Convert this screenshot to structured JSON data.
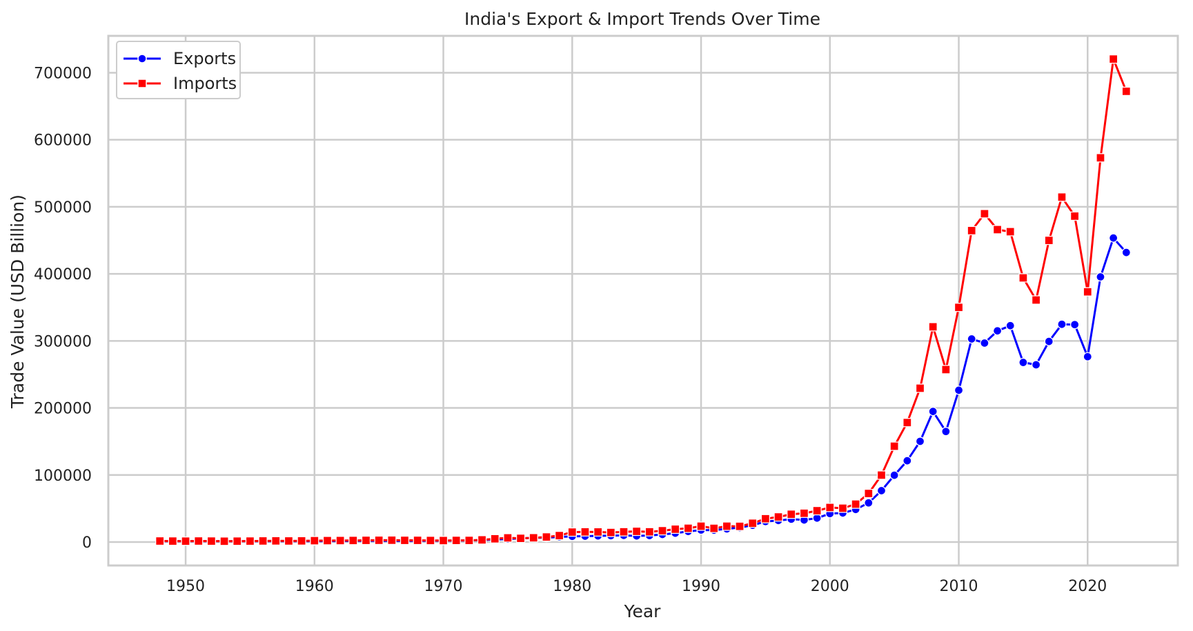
{
  "chart_data": {
    "type": "line",
    "title": "India's Export & Import Trends Over Time",
    "xlabel": "Year",
    "ylabel": "Trade Value (USD Billion)",
    "xlim": [
      1944,
      2027
    ],
    "ylim": [
      -35000,
      755000
    ],
    "xticks": [
      1950,
      1960,
      1970,
      1980,
      1990,
      2000,
      2010,
      2020
    ],
    "xtick_labels": [
      "1950",
      "1960",
      "1970",
      "1980",
      "1990",
      "2000",
      "2010",
      "2020"
    ],
    "yticks": [
      0,
      100000,
      200000,
      300000,
      400000,
      500000,
      600000,
      700000
    ],
    "ytick_labels": [
      "0",
      "100000",
      "200000",
      "300000",
      "400000",
      "500000",
      "600000",
      "700000"
    ],
    "grid": true,
    "legend_position": "top-left",
    "x": [
      1948,
      1949,
      1950,
      1951,
      1952,
      1953,
      1954,
      1955,
      1956,
      1957,
      1958,
      1959,
      1960,
      1961,
      1962,
      1963,
      1964,
      1965,
      1966,
      1967,
      1968,
      1969,
      1970,
      1971,
      1972,
      1973,
      1974,
      1975,
      1976,
      1977,
      1978,
      1979,
      1980,
      1981,
      1982,
      1983,
      1984,
      1985,
      1986,
      1987,
      1988,
      1989,
      1990,
      1991,
      1992,
      1993,
      1994,
      1995,
      1996,
      1997,
      1998,
      1999,
      2000,
      2001,
      2002,
      2003,
      2004,
      2005,
      2006,
      2007,
      2008,
      2009,
      2010,
      2011,
      2012,
      2013,
      2014,
      2015,
      2016,
      2017,
      2018,
      2019,
      2020,
      2021,
      2022,
      2023
    ],
    "series": [
      {
        "name": "Exports",
        "color": "#0000ff",
        "marker": "circle",
        "values": [
          1300,
          1200,
          1200,
          1300,
          1200,
          1100,
          1200,
          1200,
          1300,
          1300,
          1200,
          1300,
          1300,
          1400,
          1400,
          1600,
          1700,
          1700,
          1600,
          1600,
          1800,
          1800,
          2000,
          2000,
          2400,
          2900,
          3900,
          4400,
          5500,
          6300,
          6600,
          7600,
          8500,
          8700,
          9200,
          9500,
          9900,
          9100,
          9700,
          11300,
          13200,
          15800,
          17900,
          17700,
          19600,
          21600,
          25000,
          30600,
          32100,
          34100,
          32900,
          35700,
          42400,
          43300,
          48600,
          58400,
          76600,
          99600,
          121200,
          150200,
          194800,
          164900,
          226400,
          302900,
          296800,
          315000,
          322700,
          267900,
          264400,
          299200,
          324800,
          324300,
          276400,
          395500,
          453500,
          431900
        ]
      },
      {
        "name": "Imports",
        "color": "#ff0000",
        "marker": "square",
        "values": [
          1500,
          1400,
          1300,
          1500,
          1400,
          1200,
          1300,
          1400,
          1600,
          1700,
          1600,
          1700,
          2000,
          2100,
          2200,
          2300,
          2500,
          2600,
          2700,
          2500,
          2500,
          2300,
          2200,
          2400,
          2400,
          3200,
          4800,
          6200,
          5500,
          6300,
          7500,
          9600,
          14800,
          15100,
          15000,
          14200,
          15200,
          15900,
          15200,
          16800,
          19100,
          20500,
          23600,
          20400,
          23600,
          23400,
          28000,
          34700,
          37400,
          41400,
          42900,
          46700,
          51500,
          50400,
          56500,
          72400,
          99800,
          142900,
          178200,
          229400,
          321000,
          257200,
          350000,
          464500,
          489700,
          466000,
          462900,
          394000,
          361000,
          449900,
          514500,
          486100,
          373200,
          573100,
          720400,
          672300
        ]
      }
    ]
  }
}
